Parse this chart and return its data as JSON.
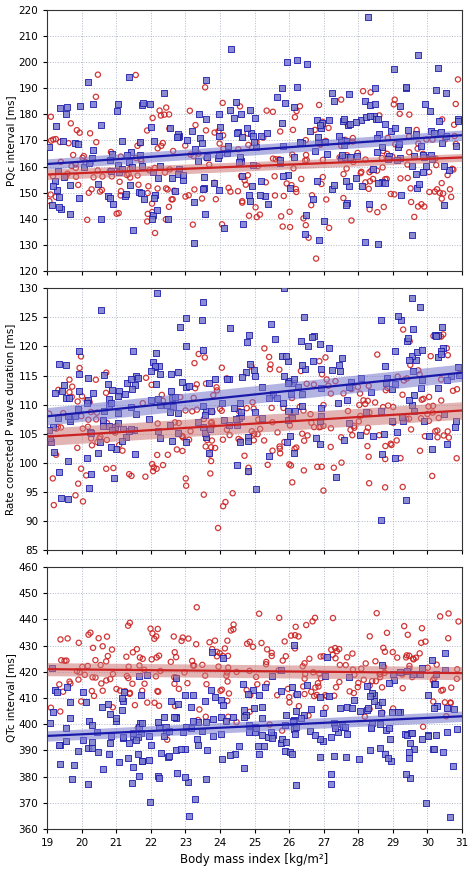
{
  "panels": [
    {
      "ylabel": "PQc interval [ms]",
      "ylim": [
        120,
        220
      ],
      "yticks": [
        120,
        130,
        140,
        150,
        160,
        170,
        180,
        190,
        200,
        210,
        220
      ],
      "blue_line": {
        "x0": 19,
        "y0": 161.0,
        "x1": 31,
        "y1": 172.0
      },
      "blue_ci": {
        "y0_lo": 159.0,
        "y0_hi": 163.0,
        "y1_lo": 170.0,
        "y1_hi": 174.0
      },
      "red_line": {
        "x0": 19,
        "y0": 157.0,
        "x1": 31,
        "y1": 163.5
      },
      "red_ci": {
        "y0_lo": 155.0,
        "y0_hi": 159.0,
        "y1_lo": 162.0,
        "y1_hi": 165.0
      },
      "blue_spread": 15,
      "red_spread": 14,
      "blue_mean": 165,
      "red_mean": 162
    },
    {
      "ylabel": "Rate corrected P wave duration [ms]",
      "ylim": [
        85,
        130
      ],
      "yticks": [
        85,
        90,
        95,
        100,
        105,
        110,
        115,
        120,
        125,
        130
      ],
      "blue_line": {
        "x0": 19,
        "y0": 108.0,
        "x1": 31,
        "y1": 115.5
      },
      "blue_ci": {
        "y0_lo": 106.5,
        "y0_hi": 109.5,
        "y1_lo": 114.0,
        "y1_hi": 117.0
      },
      "red_line": {
        "x0": 19,
        "y0": 104.5,
        "x1": 31,
        "y1": 109.0
      },
      "red_ci": {
        "y0_lo": 103.0,
        "y0_hi": 106.0,
        "y1_lo": 107.5,
        "y1_hi": 110.5
      },
      "blue_spread": 7,
      "red_spread": 6,
      "blue_mean": 110,
      "red_mean": 107
    },
    {
      "ylabel": "QTc interval [ms]",
      "ylim": [
        360,
        460
      ],
      "yticks": [
        360,
        370,
        380,
        390,
        400,
        410,
        420,
        430,
        440,
        450,
        460
      ],
      "blue_line": {
        "x0": 19,
        "y0": 395.5,
        "x1": 31,
        "y1": 403.0
      },
      "blue_ci": {
        "y0_lo": 393.5,
        "y0_hi": 397.5,
        "y1_lo": 401.0,
        "y1_hi": 405.0
      },
      "red_line": {
        "x0": 19,
        "y0": 421.0,
        "x1": 31,
        "y1": 419.5
      },
      "red_ci": {
        "y0_lo": 418.5,
        "y0_hi": 423.5,
        "y1_lo": 417.0,
        "y1_hi": 422.0
      },
      "blue_spread": 12,
      "red_spread": 10,
      "blue_mean": 399,
      "red_mean": 420
    }
  ],
  "xlim": [
    19,
    31
  ],
  "xticks": [
    19,
    20,
    21,
    22,
    23,
    24,
    25,
    26,
    27,
    28,
    29,
    30,
    31
  ],
  "xlabel": "Body mass index [kg/m²]",
  "blue_color": "#1a1aaa",
  "red_color": "#cc2222",
  "blue_fill": "#7777cc",
  "red_fill": "#cc7777",
  "grid_color": "#b0b8c8",
  "bg_color": "#ffffff",
  "n_blue": 270,
  "n_red": 270
}
